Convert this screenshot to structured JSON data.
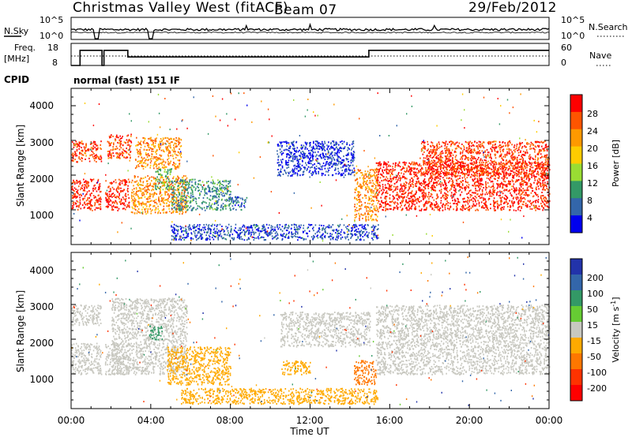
{
  "header": {
    "title": "Christmas Valley West (fitACF)",
    "beam": "Beam 07",
    "date": "29/Feb/2012"
  },
  "sky_panel": {
    "left_label": "N.Sky",
    "left_ticks": [
      "10^5",
      "10^0"
    ],
    "right_label": "N.Search",
    "right_ticks": [
      "10^5",
      "10^0"
    ]
  },
  "freq_panel": {
    "left_label_line1": "Freq.",
    "left_label_line2": "[MHz]",
    "left_ticks": [
      "18",
      "8"
    ],
    "right_label": "Nave",
    "right_ticks": [
      "60",
      "0"
    ]
  },
  "cpid": {
    "label": "CPID",
    "value": "normal (fast) 151 IF"
  },
  "power_panel": {
    "ylabel": "Slant Range [km]",
    "yticks": [
      "4000",
      "3000",
      "2000",
      "1000"
    ],
    "colorbar_label": "Power [dB]",
    "colorbar_ticks": [
      "28",
      "24",
      "20",
      "16",
      "12",
      "8",
      "4"
    ],
    "colorbar_colors": [
      "#ff0000",
      "#ff5500",
      "#ff9900",
      "#ffcc00",
      "#99dd33",
      "#339966",
      "#3366aa",
      "#0000ee"
    ]
  },
  "velocity_panel": {
    "ylabel": "Slant Range [km]",
    "yticks": [
      "4000",
      "3000",
      "2000",
      "1000"
    ],
    "colorbar_label": "Velocity [m s",
    "colorbar_label_sup": "-1",
    "colorbar_label_end": "]",
    "colorbar_ticks": [
      "200",
      "100",
      "50",
      "15",
      "-15",
      "-50",
      "-100",
      "-200"
    ],
    "colorbar_colors": [
      "#2233aa",
      "#3366aa",
      "#339966",
      "#66cc33",
      "#c8c8c0",
      "#ffaa00",
      "#ff7700",
      "#ff3300",
      "#ff0000"
    ]
  },
  "xaxis": {
    "label": "Time UT",
    "ticks": [
      "00:00",
      "04:00",
      "08:00",
      "12:00",
      "16:00",
      "20:00",
      "00:00"
    ]
  },
  "chart_data": {
    "type": "heatmap",
    "xlabel": "Time UT",
    "x_range_hours": [
      0,
      24
    ],
    "ylabel": "Slant Range [km]",
    "ylim_km": [
      0,
      4500
    ],
    "freq_segments_mhz": [
      {
        "start": 0.0,
        "end": 0.45,
        "value": 8
      },
      {
        "start": 0.45,
        "end": 1.55,
        "value": 16
      },
      {
        "start": 1.55,
        "end": 1.65,
        "value": 8
      },
      {
        "start": 1.65,
        "end": 2.85,
        "value": 16
      },
      {
        "start": 2.85,
        "end": 14.95,
        "value": 12.5
      },
      {
        "start": 14.95,
        "end": 24.0,
        "value": 16
      }
    ],
    "power_regions": [
      {
        "t0": 0.0,
        "t1": 1.5,
        "r0": 1000,
        "r1": 1900,
        "level": 27
      },
      {
        "t0": 0.0,
        "t1": 1.5,
        "r0": 2400,
        "r1": 3000,
        "level": 26
      },
      {
        "t0": 1.7,
        "t1": 2.9,
        "r0": 1000,
        "r1": 1900,
        "level": 27
      },
      {
        "t0": 1.8,
        "t1": 3.0,
        "r0": 2500,
        "r1": 3200,
        "level": 25
      },
      {
        "t0": 3.0,
        "t1": 5.8,
        "r0": 900,
        "r1": 2000,
        "level": 22
      },
      {
        "t0": 3.2,
        "t1": 5.5,
        "r0": 2200,
        "r1": 3100,
        "level": 22
      },
      {
        "t0": 4.2,
        "t1": 5.0,
        "r0": 1600,
        "r1": 2200,
        "level": 12
      },
      {
        "t0": 5.0,
        "t1": 8.0,
        "r0": 1000,
        "r1": 1900,
        "level": 10
      },
      {
        "t0": 8.0,
        "t1": 8.8,
        "r0": 1000,
        "r1": 1400,
        "level": 8
      },
      {
        "t0": 10.3,
        "t1": 14.2,
        "r0": 2000,
        "r1": 3000,
        "level": 5
      },
      {
        "t0": 14.2,
        "t1": 15.4,
        "r0": 700,
        "r1": 2200,
        "level": 22
      },
      {
        "t0": 15.3,
        "t1": 24.0,
        "r0": 1000,
        "r1": 2400,
        "level": 27
      },
      {
        "t0": 17.5,
        "t1": 24.0,
        "r0": 2000,
        "r1": 3000,
        "level": 26
      },
      {
        "t0": 5.0,
        "t1": 15.4,
        "r0": 150,
        "r1": 600,
        "level": 6
      }
    ],
    "velocity_regions": [
      {
        "t0": 0.0,
        "t1": 1.5,
        "r0": 1000,
        "r1": 1900,
        "v": 0
      },
      {
        "t0": 0.0,
        "t1": 1.5,
        "r0": 2400,
        "r1": 3000,
        "v": 0
      },
      {
        "t0": 1.7,
        "t1": 2.9,
        "r0": 1000,
        "r1": 1900,
        "v": 0
      },
      {
        "t0": 2.0,
        "t1": 5.8,
        "r0": 1000,
        "r1": 3200,
        "v": 0
      },
      {
        "t0": 3.9,
        "t1": 4.6,
        "r0": 2000,
        "r1": 2400,
        "v": 40
      },
      {
        "t0": 4.8,
        "t1": 8.0,
        "r0": 700,
        "r1": 1800,
        "v": -40
      },
      {
        "t0": 5.5,
        "t1": 15.4,
        "r0": 150,
        "r1": 600,
        "v": -40
      },
      {
        "t0": 10.5,
        "t1": 12.0,
        "r0": 1000,
        "r1": 1400,
        "v": -40
      },
      {
        "t0": 14.2,
        "t1": 15.3,
        "r0": 700,
        "r1": 1400,
        "v": -60
      },
      {
        "t0": 10.5,
        "t1": 15.0,
        "r0": 1800,
        "r1": 2800,
        "v": 0
      },
      {
        "t0": 15.3,
        "t1": 24.0,
        "r0": 1000,
        "r1": 3000,
        "v": 0
      }
    ]
  }
}
